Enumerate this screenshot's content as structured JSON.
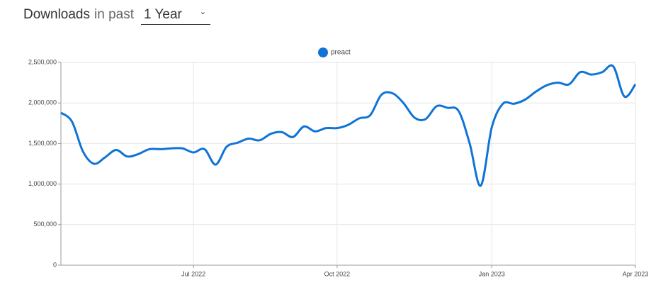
{
  "header": {
    "title": "Downloads",
    "connector": "in past",
    "period": "1 Year"
  },
  "chart_data": {
    "type": "line",
    "categories": [
      null,
      null,
      null,
      null,
      null,
      null,
      null,
      null,
      null,
      null,
      null,
      null,
      "Jul 2022",
      null,
      null,
      null,
      null,
      null,
      null,
      null,
      null,
      null,
      null,
      null,
      null,
      "Oct 2022",
      null,
      null,
      null,
      null,
      null,
      null,
      null,
      null,
      null,
      null,
      null,
      null,
      null,
      "Jan 2023",
      null,
      null,
      null,
      null,
      null,
      null,
      null,
      null,
      null,
      null,
      null,
      null,
      "Apr 2023"
    ],
    "series": [
      {
        "name": "preact",
        "color": "#0f74d6",
        "values": [
          1880000,
          1770000,
          1400000,
          1250000,
          1330000,
          1420000,
          1340000,
          1370000,
          1430000,
          1430000,
          1440000,
          1440000,
          1390000,
          1430000,
          1240000,
          1460000,
          1510000,
          1560000,
          1540000,
          1620000,
          1640000,
          1580000,
          1710000,
          1650000,
          1690000,
          1690000,
          1730000,
          1810000,
          1850000,
          2100000,
          2120000,
          2000000,
          1820000,
          1800000,
          1960000,
          1940000,
          1900000,
          1500000,
          980000,
          1700000,
          1990000,
          1990000,
          2040000,
          2140000,
          2220000,
          2250000,
          2230000,
          2380000,
          2350000,
          2380000,
          2450000,
          2080000,
          2230000
        ]
      }
    ],
    "ylim": [
      0,
      2500000
    ],
    "yticks": [
      0,
      {
        "value": 500000,
        "label": "500,000"
      },
      {
        "value": 1000000,
        "label": "1,000,000"
      },
      {
        "value": 1500000,
        "label": "1,500,000"
      },
      {
        "value": 2000000,
        "label": "2,000,000"
      },
      {
        "value": 2500000,
        "label": "2,500,000"
      }
    ],
    "grid": true,
    "legend": "top"
  }
}
